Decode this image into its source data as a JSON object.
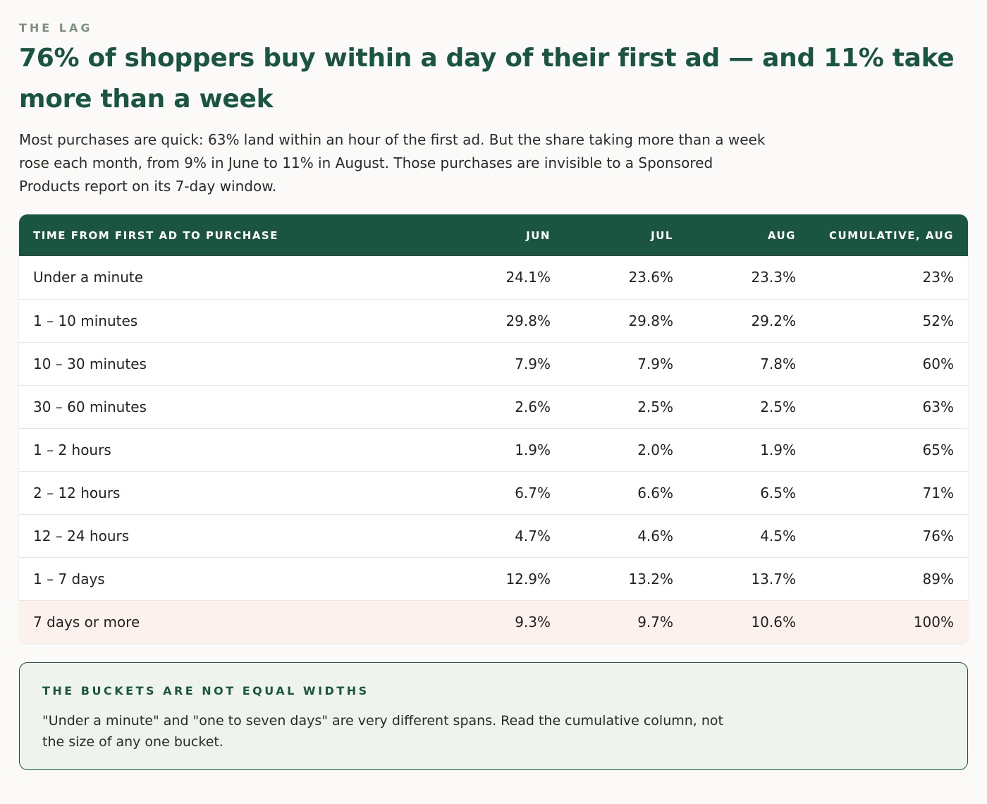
{
  "eyebrow": "THE LAG",
  "headline": "76% of shoppers buy within a day of their first ad — and 11% take more than a week",
  "dek": "Most purchases are quick: 63% land within an hour of the first ad. But the share taking more than a week rose each month, from 9% in June to 11% in August. Those purchases are invisible to a Sponsored Products report on its 7-day window.",
  "table": {
    "headers": [
      "TIME FROM FIRST AD TO PURCHASE",
      "JUN",
      "JUL",
      "AUG",
      "CUMULATIVE, AUG"
    ],
    "rows": [
      [
        "Under a minute",
        "24.1%",
        "23.6%",
        "23.3%",
        "23%"
      ],
      [
        "1 – 10 minutes",
        "29.8%",
        "29.8%",
        "29.2%",
        "52%"
      ],
      [
        "10 – 30 minutes",
        "7.9%",
        "7.9%",
        "7.8%",
        "60%"
      ],
      [
        "30 – 60 minutes",
        "2.6%",
        "2.5%",
        "2.5%",
        "63%"
      ],
      [
        "1 – 2 hours",
        "1.9%",
        "2.0%",
        "1.9%",
        "65%"
      ],
      [
        "2 – 12 hours",
        "6.7%",
        "6.6%",
        "6.5%",
        "71%"
      ],
      [
        "12 – 24 hours",
        "4.7%",
        "4.6%",
        "4.5%",
        "76%"
      ],
      [
        "1 – 7 days",
        "12.9%",
        "13.2%",
        "13.7%",
        "89%"
      ],
      [
        "7 days or more",
        "9.3%",
        "9.7%",
        "10.6%",
        "100%"
      ]
    ]
  },
  "note": {
    "title": "THE BUCKETS ARE NOT EQUAL WIDTHS",
    "body": "\"Under a minute\" and \"one to seven days\" are very different spans. Read the cumulative column, not the size of any one bucket."
  },
  "colors": {
    "accent": "#1a5541",
    "highlight_row": "#fdf1ee",
    "note_bg": "#eff3ee"
  }
}
